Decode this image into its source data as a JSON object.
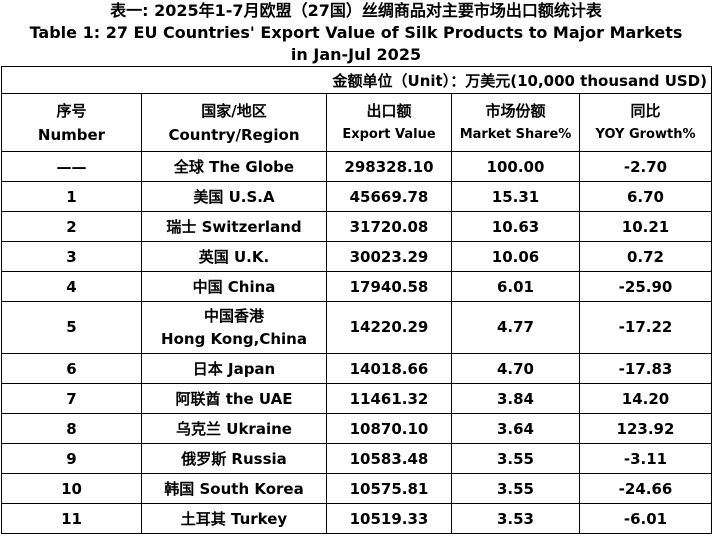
{
  "title": {
    "cn": "表一: 2025年1-7月欧盟（27国）丝绸商品对主要市场出口额统计表",
    "en_line1": "Table 1: 27 EU Countries' Export Value of Silk Products to Major Markets",
    "en_line2": "in Jan-Jul 2025"
  },
  "unit": "金额单位（Unit）：万美元(10,000 thousand USD)",
  "headers": {
    "number": {
      "cn": "序号",
      "en": "Number"
    },
    "country": {
      "cn": "国家/地区",
      "en": "Country/Region"
    },
    "value": {
      "cn": "出口额",
      "en": "Export Value"
    },
    "share": {
      "cn": "市场份额",
      "en": "Market Share%"
    },
    "yoy": {
      "cn": "同比",
      "en": "YOY Growth%"
    }
  },
  "rows": [
    {
      "number": "——",
      "country": "全球  The Globe",
      "value": "298328.10",
      "share": "100.00",
      "yoy": "-2.70"
    },
    {
      "number": "1",
      "country": "美国 U.S.A",
      "value": "45669.78",
      "share": "15.31",
      "yoy": "6.70"
    },
    {
      "number": "2",
      "country": "瑞士 Switzerland",
      "value": "31720.08",
      "share": "10.63",
      "yoy": "10.21"
    },
    {
      "number": "3",
      "country": "英国 U.K.",
      "value": "30023.29",
      "share": "10.06",
      "yoy": "0.72"
    },
    {
      "number": "4",
      "country": "中国 China",
      "value": "17940.58",
      "share": "6.01",
      "yoy": "-25.90"
    },
    {
      "number": "5",
      "country_cn": "中国香港",
      "country_en": "Hong Kong,China",
      "value": "14220.29",
      "share": "4.77",
      "yoy": "-17.22"
    },
    {
      "number": "6",
      "country": "日本 Japan",
      "value": "14018.66",
      "share": "4.70",
      "yoy": "-17.83"
    },
    {
      "number": "7",
      "country": "阿联酋 the UAE",
      "value": "11461.32",
      "share": "3.84",
      "yoy": "14.20"
    },
    {
      "number": "8",
      "country": "乌克兰 Ukraine",
      "value": "10870.10",
      "share": "3.64",
      "yoy": "123.92"
    },
    {
      "number": "9",
      "country": "俄罗斯 Russia",
      "value": "10583.48",
      "share": "3.55",
      "yoy": "-3.11"
    },
    {
      "number": "10",
      "country": "韩国 South Korea",
      "value": "10575.81",
      "share": "3.55",
      "yoy": "-24.66"
    },
    {
      "number": "11",
      "country": "土耳其 Turkey",
      "value": "10519.33",
      "share": "3.53",
      "yoy": "-6.01"
    }
  ]
}
